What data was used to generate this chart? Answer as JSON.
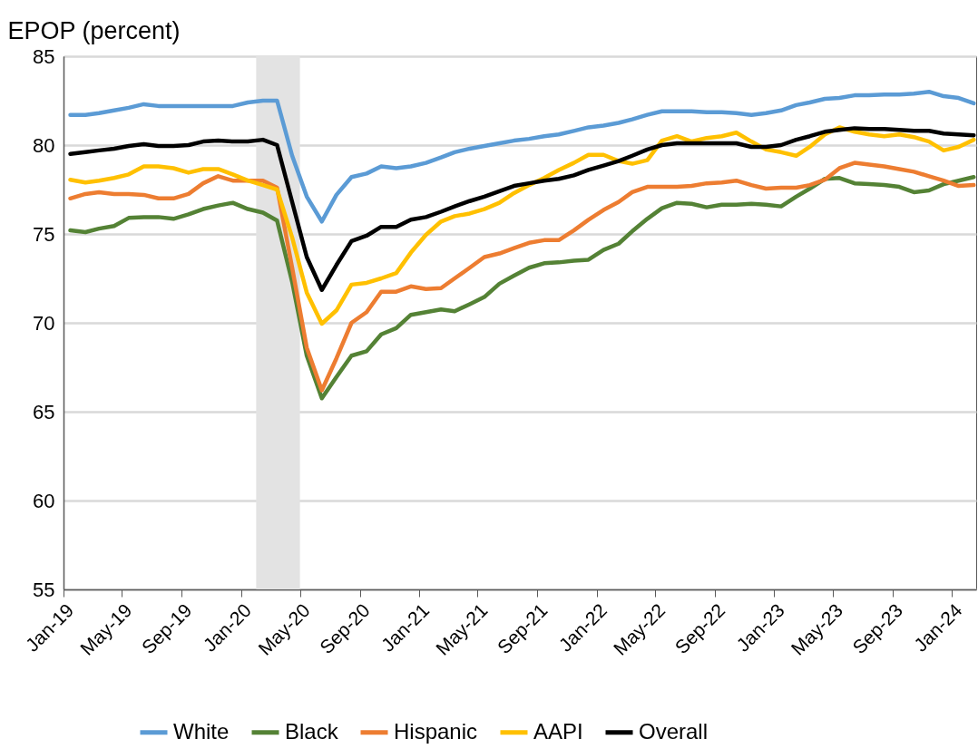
{
  "chart_data": {
    "type": "line",
    "ylabel": "EPOP (percent)",
    "x": [
      "2019-01-15",
      "2019-02-15",
      "2019-03-15",
      "2019-04-15",
      "2019-05-15",
      "2019-06-15",
      "2019-07-15",
      "2019-08-15",
      "2019-09-15",
      "2019-10-15",
      "2019-11-15",
      "2019-12-15",
      "2020-01-15",
      "2020-02-15",
      "2020-03-15",
      "2020-04-15",
      "2020-05-15",
      "2020-06-15",
      "2020-07-15",
      "2020-08-15",
      "2020-09-15",
      "2020-10-15",
      "2020-11-15",
      "2020-12-15",
      "2021-01-15",
      "2021-02-15",
      "2021-03-15",
      "2021-04-15",
      "2021-05-15",
      "2021-06-15",
      "2021-07-15",
      "2021-08-15",
      "2021-09-15",
      "2021-10-15",
      "2021-11-15",
      "2021-12-15",
      "2022-01-15",
      "2022-02-15",
      "2022-03-15",
      "2022-04-15",
      "2022-05-15",
      "2022-06-15",
      "2022-07-15",
      "2022-08-15",
      "2022-09-15",
      "2022-10-15",
      "2022-11-15",
      "2022-12-15",
      "2023-01-15",
      "2023-02-15",
      "2023-03-15",
      "2023-04-15",
      "2023-05-15",
      "2023-06-15",
      "2023-07-15",
      "2023-08-15",
      "2023-09-15",
      "2023-10-15",
      "2023-11-15",
      "2023-12-15",
      "2024-01-15",
      "2024-02-15"
    ],
    "series": [
      {
        "name": "White",
        "color": "#5b9bd5",
        "values": [
          81.7,
          81.7,
          81.8,
          81.95,
          82.1,
          82.3,
          82.2,
          82.2,
          82.2,
          82.2,
          82.2,
          82.2,
          82.4,
          82.5,
          82.5,
          79.4,
          77.1,
          75.7,
          77.2,
          78.2,
          78.4,
          78.8,
          78.7,
          78.8,
          79.0,
          79.3,
          79.6,
          79.8,
          79.95,
          80.1,
          80.25,
          80.35,
          80.5,
          80.6,
          80.8,
          81.0,
          81.1,
          81.25,
          81.45,
          81.7,
          81.9,
          81.9,
          81.9,
          81.85,
          81.85,
          81.8,
          81.7,
          81.8,
          81.95,
          82.25,
          82.4,
          82.6,
          82.65,
          82.8,
          82.8,
          82.85,
          82.85,
          82.9,
          83.0,
          82.75,
          82.65,
          82.35
        ]
      },
      {
        "name": "Black",
        "color": "#548235",
        "values": [
          75.2,
          75.1,
          75.3,
          75.45,
          75.9,
          75.95,
          75.95,
          75.85,
          76.1,
          76.4,
          76.6,
          76.75,
          76.4,
          76.2,
          75.75,
          72.3,
          68.15,
          65.75,
          66.95,
          68.15,
          68.4,
          69.35,
          69.7,
          70.45,
          70.6,
          70.75,
          70.65,
          71.05,
          71.45,
          72.2,
          72.65,
          73.1,
          73.35,
          73.4,
          73.5,
          73.55,
          74.1,
          74.45,
          75.15,
          75.85,
          76.45,
          76.75,
          76.7,
          76.5,
          76.65,
          76.65,
          76.7,
          76.65,
          76.55,
          77.1,
          77.55,
          78.1,
          78.15,
          77.85,
          77.8,
          77.75,
          77.65,
          77.35,
          77.45,
          77.8,
          78.0,
          78.2
        ]
      },
      {
        "name": "Hispanic",
        "color": "#ed7d31",
        "values": [
          77.0,
          77.25,
          77.35,
          77.25,
          77.25,
          77.2,
          77.0,
          77.0,
          77.25,
          77.85,
          78.25,
          78.0,
          78.0,
          78.0,
          77.6,
          73.1,
          68.6,
          66.2,
          68.0,
          70.0,
          70.6,
          71.75,
          71.75,
          72.05,
          71.9,
          71.95,
          72.5,
          73.1,
          73.7,
          73.9,
          74.2,
          74.5,
          74.65,
          74.65,
          75.2,
          75.8,
          76.35,
          76.8,
          77.35,
          77.65,
          77.65,
          77.65,
          77.7,
          77.85,
          77.9,
          78.0,
          77.75,
          77.55,
          77.6,
          77.6,
          77.75,
          78.05,
          78.7,
          79.0,
          78.9,
          78.8,
          78.65,
          78.5,
          78.25,
          78.0,
          77.7,
          77.75
        ]
      },
      {
        "name": "AAPI",
        "color": "#ffc000",
        "values": [
          78.05,
          77.9,
          78.0,
          78.15,
          78.35,
          78.8,
          78.8,
          78.7,
          78.45,
          78.65,
          78.65,
          78.35,
          78.0,
          77.75,
          77.5,
          74.8,
          71.7,
          69.95,
          70.7,
          72.15,
          72.25,
          72.5,
          72.8,
          73.95,
          74.95,
          75.7,
          76.0,
          76.15,
          76.4,
          76.75,
          77.3,
          77.75,
          78.15,
          78.6,
          79.0,
          79.45,
          79.45,
          79.1,
          78.95,
          79.15,
          80.25,
          80.5,
          80.2,
          80.4,
          80.5,
          80.7,
          80.2,
          79.75,
          79.6,
          79.4,
          79.9,
          80.6,
          81.0,
          80.75,
          80.6,
          80.5,
          80.6,
          80.45,
          80.2,
          79.7,
          79.9,
          80.3
        ]
      },
      {
        "name": "Overall",
        "color": "#000000",
        "values": [
          79.5,
          79.6,
          79.7,
          79.8,
          79.95,
          80.05,
          79.95,
          79.95,
          80.0,
          80.2,
          80.25,
          80.2,
          80.2,
          80.3,
          80.0,
          76.8,
          73.7,
          71.85,
          73.25,
          74.6,
          74.9,
          75.4,
          75.4,
          75.8,
          75.95,
          76.25,
          76.55,
          76.85,
          77.1,
          77.4,
          77.7,
          77.85,
          78.0,
          78.1,
          78.3,
          78.6,
          78.85,
          79.1,
          79.4,
          79.75,
          80.0,
          80.1,
          80.1,
          80.1,
          80.1,
          80.1,
          79.9,
          79.9,
          80.0,
          80.3,
          80.5,
          80.75,
          80.85,
          80.95,
          80.9,
          80.9,
          80.85,
          80.8,
          80.8,
          80.65,
          80.6,
          80.55
        ]
      }
    ],
    "xlim": [
      "2019-01-01",
      "2024-02-20"
    ],
    "xticks": [
      {
        "value": "2019-01-01",
        "label": "Jan-19"
      },
      {
        "value": "2019-05-01",
        "label": "May-19"
      },
      {
        "value": "2019-09-01",
        "label": "Sep-19"
      },
      {
        "value": "2020-01-01",
        "label": "Jan-20"
      },
      {
        "value": "2020-05-01",
        "label": "May-20"
      },
      {
        "value": "2020-09-01",
        "label": "Sep-20"
      },
      {
        "value": "2021-01-01",
        "label": "Jan-21"
      },
      {
        "value": "2021-05-01",
        "label": "May-21"
      },
      {
        "value": "2021-09-01",
        "label": "Sep-21"
      },
      {
        "value": "2022-01-01",
        "label": "Jan-22"
      },
      {
        "value": "2022-05-01",
        "label": "May-22"
      },
      {
        "value": "2022-09-01",
        "label": "Sep-22"
      },
      {
        "value": "2023-01-01",
        "label": "Jan-23"
      },
      {
        "value": "2023-05-01",
        "label": "May-23"
      },
      {
        "value": "2023-09-01",
        "label": "Sep-23"
      },
      {
        "value": "2024-01-01",
        "label": "Jan-24"
      }
    ],
    "ylim": [
      55,
      85
    ],
    "yticks": [
      55,
      60,
      65,
      70,
      75,
      80,
      85
    ],
    "bands": [
      {
        "axis": "x",
        "from": "2020-02-01",
        "to": "2020-05-01",
        "color": "#e3e3e3"
      }
    ],
    "grid": "y",
    "legend": "bottom"
  }
}
